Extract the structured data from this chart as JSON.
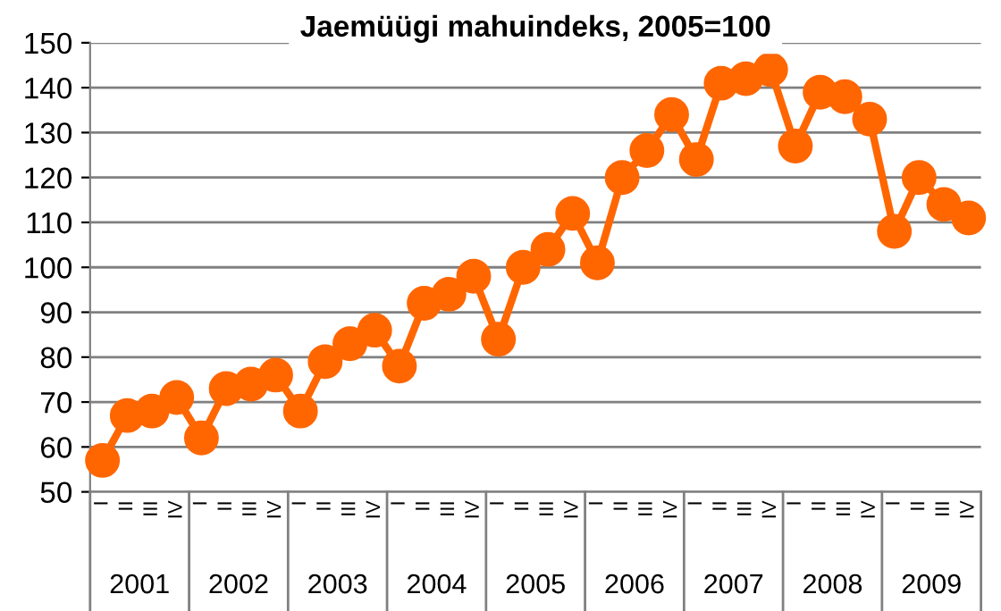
{
  "chart_data": {
    "type": "line",
    "title": "Jaemüügi mahuindeks, 2005=100",
    "categories": [
      "I",
      "II",
      "III",
      "IV",
      "I",
      "II",
      "III",
      "IV",
      "I",
      "II",
      "III",
      "IV",
      "I",
      "II",
      "III",
      "IV",
      "I",
      "II",
      "III",
      "IV",
      "I",
      "II",
      "III",
      "IV",
      "I",
      "II",
      "III",
      "IV",
      "I",
      "II",
      "III",
      "IV",
      "I",
      "II",
      "III",
      "IV"
    ],
    "series": [
      {
        "color": "#ff6600",
        "values": [
          57,
          67,
          68,
          71,
          62,
          73,
          74,
          76,
          68,
          79,
          83,
          86,
          78,
          92,
          94,
          98,
          84,
          100,
          104,
          112,
          101,
          120,
          126,
          134,
          124,
          141,
          142,
          144,
          127,
          139,
          138,
          133,
          108,
          120,
          114,
          111
        ]
      }
    ],
    "annotations": [
      "2001",
      "2002",
      "2003",
      "2004",
      "2005",
      "2006",
      "2007",
      "2008",
      "2009"
    ],
    "ylim": [
      50,
      150
    ],
    "yticks": [
      50,
      60,
      70,
      80,
      90,
      100,
      110,
      120,
      130,
      140,
      150
    ],
    "grid": "y",
    "marker": "circle",
    "line_style": "solid"
  }
}
